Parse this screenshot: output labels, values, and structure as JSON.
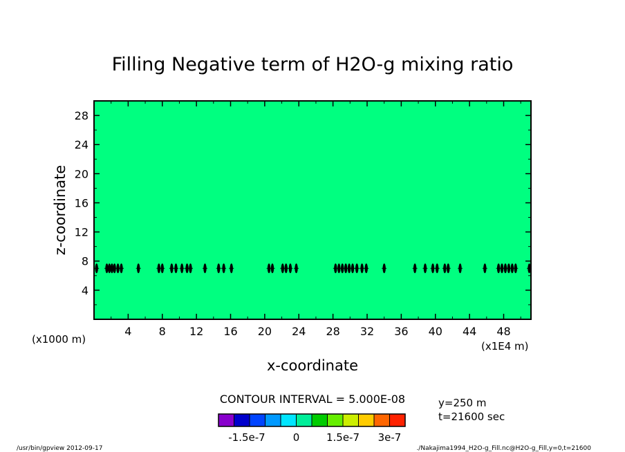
{
  "chart_data": {
    "type": "heatmap",
    "title": "Filling Negative term of H2O-g mixing ratio",
    "xlabel": "x-coordinate",
    "ylabel": "z-coordinate",
    "x_unit_label": "(x1E4 m)",
    "y_unit_label": "(x1000 m)",
    "xlim": [
      0,
      51.2
    ],
    "ylim": [
      0,
      30
    ],
    "xticks": [
      4,
      8,
      12,
      16,
      20,
      24,
      28,
      32,
      36,
      40,
      44,
      48
    ],
    "yticks": [
      4,
      8,
      12,
      16,
      20,
      24,
      28
    ],
    "background_level": 0,
    "feature_z": 7.0,
    "feature_x": [
      0.3,
      1.5,
      1.8,
      2.1,
      2.4,
      2.8,
      3.2,
      5.2,
      7.6,
      8.0,
      9.1,
      9.6,
      10.3,
      10.9,
      11.3,
      13.0,
      14.6,
      15.2,
      16.1,
      20.5,
      20.9,
      22.1,
      22.5,
      23.0,
      23.7,
      28.3,
      28.7,
      29.1,
      29.5,
      29.9,
      30.3,
      30.8,
      31.4,
      31.9,
      34.0,
      37.6,
      38.8,
      39.7,
      40.2,
      41.1,
      41.5,
      42.9,
      45.8,
      47.4,
      47.8,
      48.2,
      48.6,
      49.0,
      49.4,
      51.0
    ],
    "contour_interval_label": "CONTOUR INTERVAL = 5.000E-08",
    "colorbar": {
      "colors": [
        "#8800cc",
        "#0000cc",
        "#0044ff",
        "#0099ff",
        "#00e5ff",
        "#00ee99",
        "#00cc00",
        "#66ee00",
        "#ccee00",
        "#ffcc00",
        "#ff6600",
        "#ff2200"
      ],
      "tick_labels": [
        "-1.5e-7",
        "0",
        "1.5e-7",
        "3e-7"
      ]
    },
    "field_color": "#00ff80",
    "feature_color": "#000000"
  },
  "info": {
    "y_value": "y=250 m",
    "t_value": "t=21600 sec"
  },
  "footer": {
    "left": "/usr/bin/gpview  2012-09-17",
    "right": "./Nakajima1994_H2O-g_Fill.nc@H2O-g_Fill,y=0,t=21600"
  }
}
